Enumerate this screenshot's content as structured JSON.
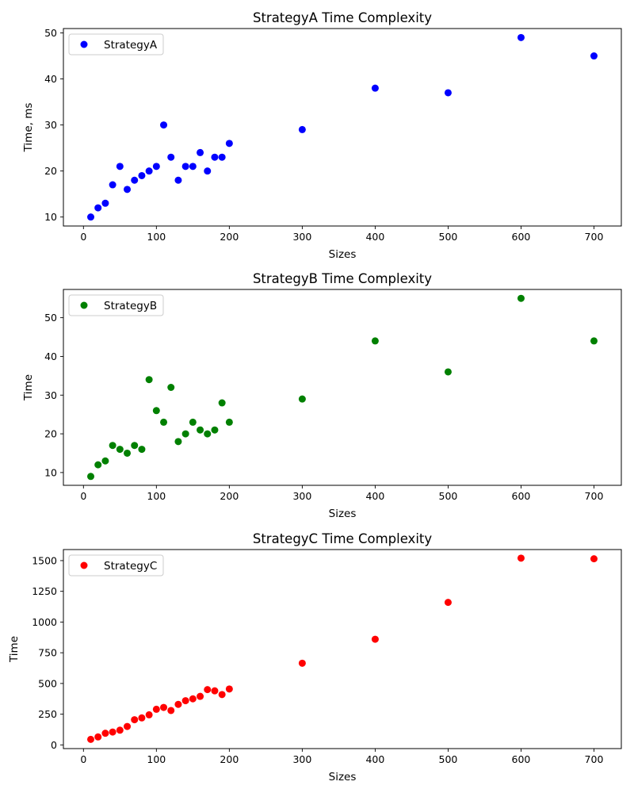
{
  "chart_data": [
    {
      "type": "scatter",
      "title": "StrategyA Time Complexity",
      "xlabel": "Sizes",
      "ylabel": "Time, ms",
      "legend_location": "upper-left",
      "grid": false,
      "xlim": [
        -27.5,
        737.5
      ],
      "ylim": [
        8.05,
        50.95
      ],
      "xticks": [
        0,
        100,
        200,
        300,
        400,
        500,
        600,
        700
      ],
      "yticks": [
        10,
        20,
        30,
        40,
        50
      ],
      "series": [
        {
          "name": "StrategyA",
          "color": "#0000ff",
          "x": [
            10,
            20,
            30,
            40,
            50,
            60,
            70,
            80,
            90,
            100,
            110,
            120,
            130,
            140,
            150,
            160,
            170,
            180,
            190,
            200,
            300,
            400,
            500,
            600,
            700
          ],
          "y": [
            10,
            12,
            13,
            17,
            21,
            16,
            18,
            19,
            20,
            21,
            30,
            23,
            18,
            21,
            21,
            24,
            20,
            23,
            23,
            26,
            29,
            38,
            37,
            49,
            45
          ]
        }
      ]
    },
    {
      "type": "scatter",
      "title": "StrategyB Time Complexity",
      "xlabel": "Sizes",
      "ylabel": "Time",
      "legend_location": "upper-left",
      "grid": false,
      "xlim": [
        -27.5,
        737.5
      ],
      "ylim": [
        6.7,
        57.3
      ],
      "xticks": [
        0,
        100,
        200,
        300,
        400,
        500,
        600,
        700
      ],
      "yticks": [
        10,
        20,
        30,
        40,
        50
      ],
      "series": [
        {
          "name": "StrategyB",
          "color": "#008000",
          "x": [
            10,
            20,
            30,
            40,
            50,
            60,
            70,
            80,
            90,
            100,
            110,
            120,
            130,
            140,
            150,
            160,
            170,
            180,
            190,
            200,
            300,
            400,
            500,
            600,
            700
          ],
          "y": [
            9,
            12,
            13,
            17,
            16,
            15,
            17,
            16,
            34,
            26,
            23,
            32,
            18,
            20,
            23,
            21,
            20,
            21,
            28,
            23,
            29,
            44,
            36,
            55,
            44
          ]
        }
      ]
    },
    {
      "type": "scatter",
      "title": "StrategyC Time Complexity",
      "xlabel": "Sizes",
      "ylabel": "Time",
      "legend_location": "upper-left",
      "grid": false,
      "xlim": [
        -27.5,
        737.5
      ],
      "ylim": [
        -30,
        1590
      ],
      "xticks": [
        0,
        100,
        200,
        300,
        400,
        500,
        600,
        700
      ],
      "yticks": [
        0,
        250,
        500,
        750,
        1000,
        1250,
        1500
      ],
      "series": [
        {
          "name": "StrategyC",
          "color": "#ff0000",
          "x": [
            10,
            20,
            30,
            40,
            50,
            60,
            70,
            80,
            90,
            100,
            110,
            120,
            130,
            140,
            150,
            160,
            170,
            180,
            190,
            200,
            300,
            400,
            500,
            600,
            700
          ],
          "y": [
            45,
            65,
            95,
            105,
            120,
            150,
            205,
            220,
            245,
            290,
            305,
            280,
            330,
            360,
            375,
            395,
            450,
            440,
            410,
            455,
            665,
            860,
            1160,
            1520,
            1515
          ]
        }
      ]
    }
  ]
}
